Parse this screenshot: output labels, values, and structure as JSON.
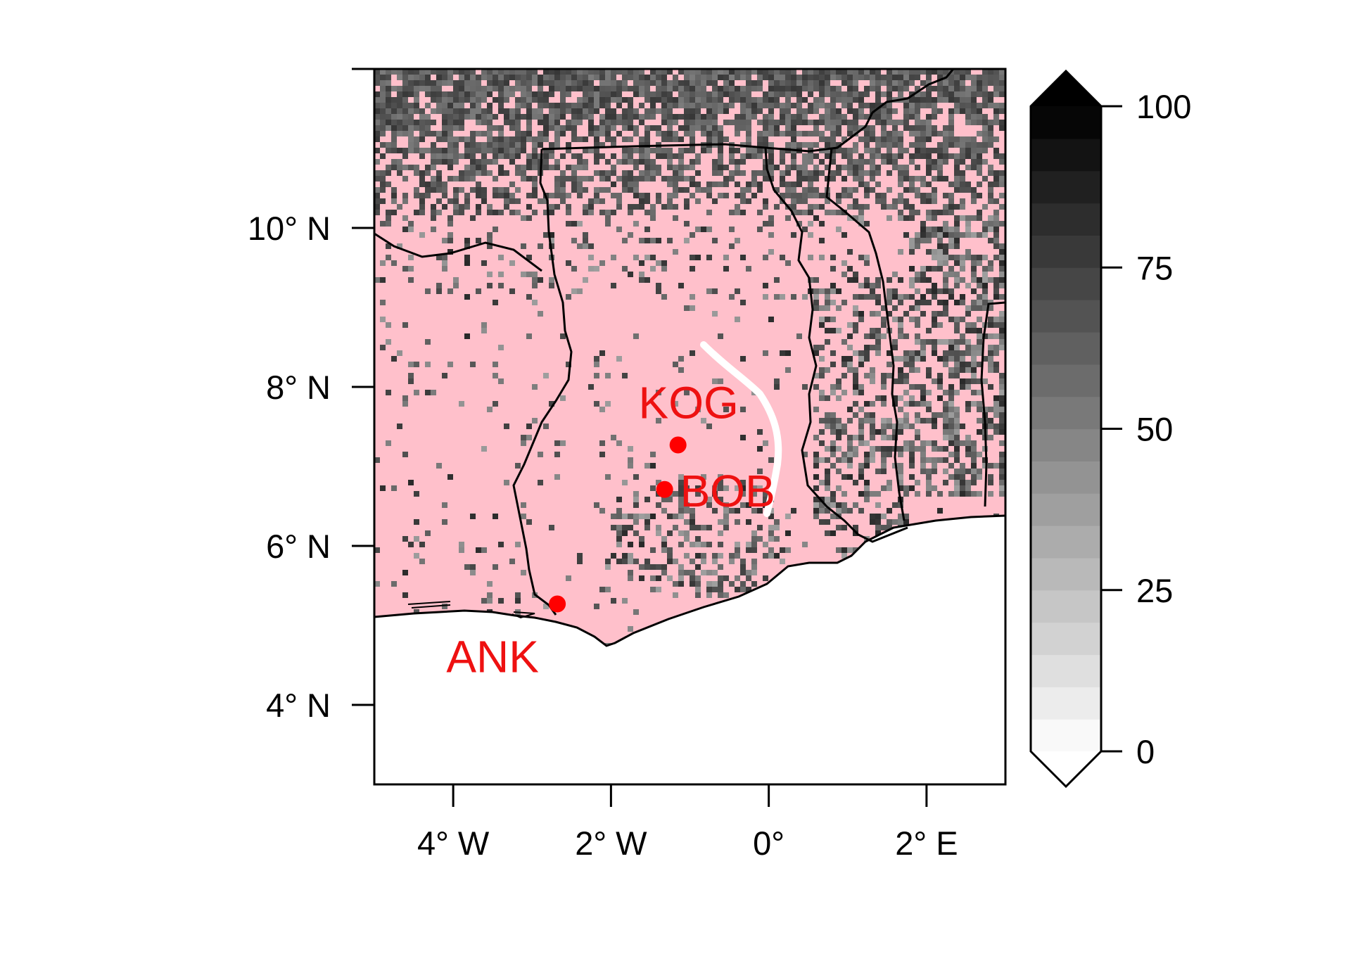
{
  "map": {
    "x_ticks": [
      {
        "lon": -4,
        "label": "4° W"
      },
      {
        "lon": -2,
        "label": "2° W"
      },
      {
        "lon": 0,
        "label": "0°"
      },
      {
        "lon": 2,
        "label": "2° E"
      }
    ],
    "y_ticks": [
      {
        "lat": 4,
        "label": "4° N"
      },
      {
        "lat": 6,
        "label": "6° N"
      },
      {
        "lat": 8,
        "label": "8° N"
      },
      {
        "lat": 10,
        "label": "10° N"
      }
    ],
    "extent": {
      "lon": [
        -5,
        3
      ],
      "lat": [
        3,
        12
      ]
    },
    "sites": [
      {
        "name": "KOG",
        "lon": -1.15,
        "lat": 7.27
      },
      {
        "name": "BOB",
        "lon": -1.32,
        "lat": 6.71
      },
      {
        "name": "ANK",
        "lon": -2.68,
        "lat": 5.27
      }
    ],
    "colors": {
      "land_fill": "#ffc0cb",
      "site_marker": "#ff0000",
      "border": "#000000",
      "ocean": "#ffffff"
    },
    "colorbar": {
      "min": 0,
      "max": 100,
      "step": 5,
      "extend": "both",
      "palette": "white-to-black greyscale",
      "ticks": [
        {
          "value": 0,
          "label": "0"
        },
        {
          "value": 25,
          "label": "25"
        },
        {
          "value": 50,
          "label": "50"
        },
        {
          "value": 75,
          "label": "75"
        },
        {
          "value": 100,
          "label": "100"
        }
      ]
    }
  }
}
